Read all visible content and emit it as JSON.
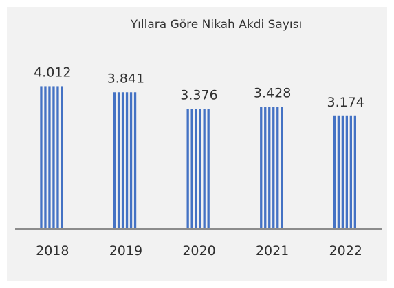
{
  "chart_data": {
    "type": "bar",
    "title": "Yıllara Göre Nikah Akdi Sayısı",
    "categories": [
      "2018",
      "2019",
      "2020",
      "2021",
      "2022"
    ],
    "values": [
      4012,
      3841,
      3376,
      3428,
      3174
    ],
    "value_labels": [
      "4.012",
      "3.841",
      "3.376",
      "3.428",
      "3.174"
    ],
    "ylim": [
      0,
      4600
    ],
    "grid": false,
    "legend": "none",
    "colors": {
      "bar": "#4472c4",
      "stripe": "#ffffff",
      "axis": "#8c8c8c",
      "background": "#f2f2f2"
    }
  }
}
